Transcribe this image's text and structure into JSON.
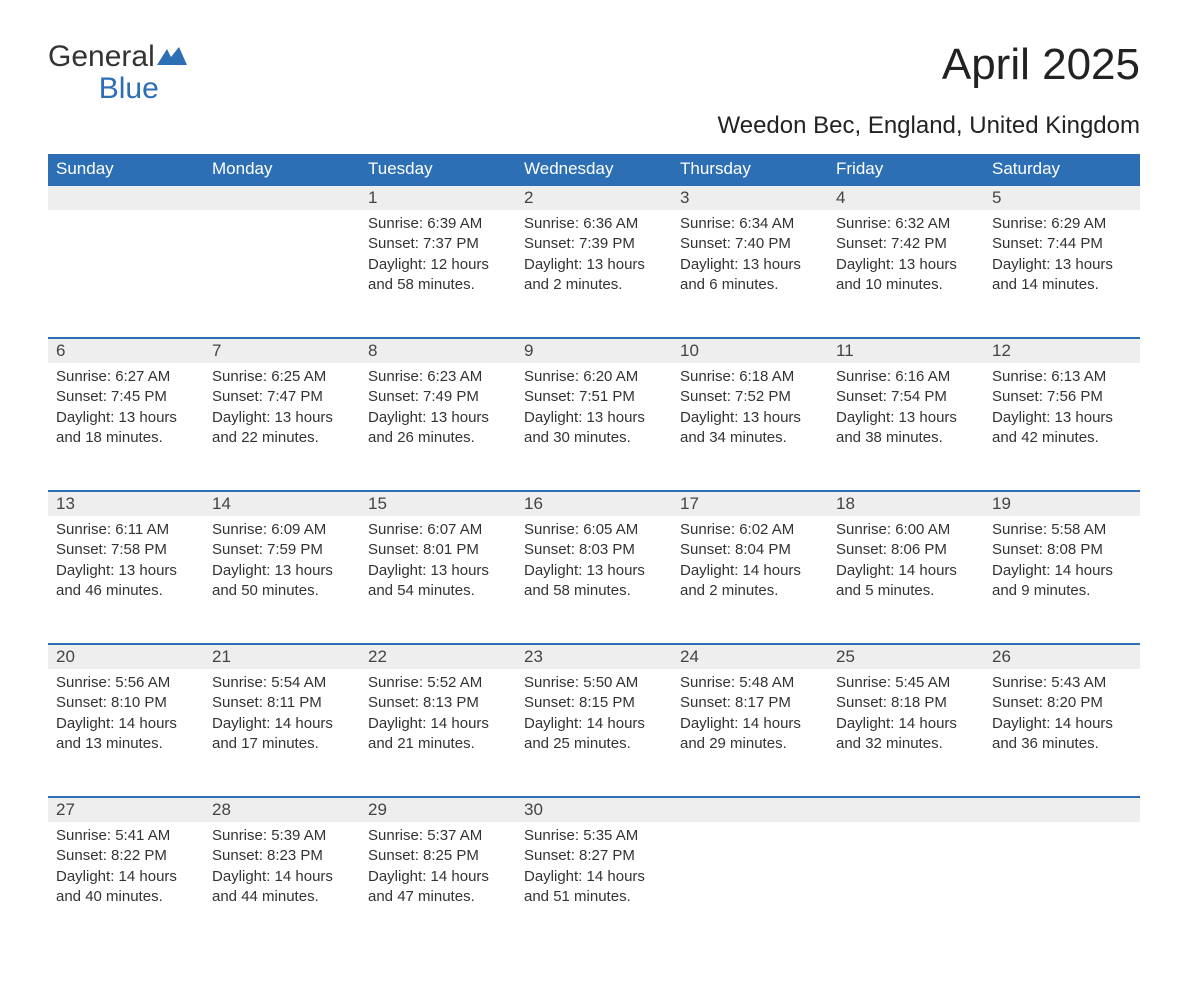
{
  "brand": {
    "word1": "General",
    "word2": "Blue"
  },
  "title": "April 2025",
  "location": "Weedon Bec, England, United Kingdom",
  "colors": {
    "header_bg": "#2c6fb5",
    "header_text": "#ffffff",
    "daynum_bg": "#eeeeee",
    "row_border": "#2c6fb5",
    "body_text": "#333333",
    "background": "#ffffff"
  },
  "column_headers": [
    "Sunday",
    "Monday",
    "Tuesday",
    "Wednesday",
    "Thursday",
    "Friday",
    "Saturday"
  ],
  "weeks": [
    [
      null,
      null,
      {
        "day": "1",
        "sunrise": "Sunrise: 6:39 AM",
        "sunset": "Sunset: 7:37 PM",
        "daylight1": "Daylight: 12 hours",
        "daylight2": "and 58 minutes."
      },
      {
        "day": "2",
        "sunrise": "Sunrise: 6:36 AM",
        "sunset": "Sunset: 7:39 PM",
        "daylight1": "Daylight: 13 hours",
        "daylight2": "and 2 minutes."
      },
      {
        "day": "3",
        "sunrise": "Sunrise: 6:34 AM",
        "sunset": "Sunset: 7:40 PM",
        "daylight1": "Daylight: 13 hours",
        "daylight2": "and 6 minutes."
      },
      {
        "day": "4",
        "sunrise": "Sunrise: 6:32 AM",
        "sunset": "Sunset: 7:42 PM",
        "daylight1": "Daylight: 13 hours",
        "daylight2": "and 10 minutes."
      },
      {
        "day": "5",
        "sunrise": "Sunrise: 6:29 AM",
        "sunset": "Sunset: 7:44 PM",
        "daylight1": "Daylight: 13 hours",
        "daylight2": "and 14 minutes."
      }
    ],
    [
      {
        "day": "6",
        "sunrise": "Sunrise: 6:27 AM",
        "sunset": "Sunset: 7:45 PM",
        "daylight1": "Daylight: 13 hours",
        "daylight2": "and 18 minutes."
      },
      {
        "day": "7",
        "sunrise": "Sunrise: 6:25 AM",
        "sunset": "Sunset: 7:47 PM",
        "daylight1": "Daylight: 13 hours",
        "daylight2": "and 22 minutes."
      },
      {
        "day": "8",
        "sunrise": "Sunrise: 6:23 AM",
        "sunset": "Sunset: 7:49 PM",
        "daylight1": "Daylight: 13 hours",
        "daylight2": "and 26 minutes."
      },
      {
        "day": "9",
        "sunrise": "Sunrise: 6:20 AM",
        "sunset": "Sunset: 7:51 PM",
        "daylight1": "Daylight: 13 hours",
        "daylight2": "and 30 minutes."
      },
      {
        "day": "10",
        "sunrise": "Sunrise: 6:18 AM",
        "sunset": "Sunset: 7:52 PM",
        "daylight1": "Daylight: 13 hours",
        "daylight2": "and 34 minutes."
      },
      {
        "day": "11",
        "sunrise": "Sunrise: 6:16 AM",
        "sunset": "Sunset: 7:54 PM",
        "daylight1": "Daylight: 13 hours",
        "daylight2": "and 38 minutes."
      },
      {
        "day": "12",
        "sunrise": "Sunrise: 6:13 AM",
        "sunset": "Sunset: 7:56 PM",
        "daylight1": "Daylight: 13 hours",
        "daylight2": "and 42 minutes."
      }
    ],
    [
      {
        "day": "13",
        "sunrise": "Sunrise: 6:11 AM",
        "sunset": "Sunset: 7:58 PM",
        "daylight1": "Daylight: 13 hours",
        "daylight2": "and 46 minutes."
      },
      {
        "day": "14",
        "sunrise": "Sunrise: 6:09 AM",
        "sunset": "Sunset: 7:59 PM",
        "daylight1": "Daylight: 13 hours",
        "daylight2": "and 50 minutes."
      },
      {
        "day": "15",
        "sunrise": "Sunrise: 6:07 AM",
        "sunset": "Sunset: 8:01 PM",
        "daylight1": "Daylight: 13 hours",
        "daylight2": "and 54 minutes."
      },
      {
        "day": "16",
        "sunrise": "Sunrise: 6:05 AM",
        "sunset": "Sunset: 8:03 PM",
        "daylight1": "Daylight: 13 hours",
        "daylight2": "and 58 minutes."
      },
      {
        "day": "17",
        "sunrise": "Sunrise: 6:02 AM",
        "sunset": "Sunset: 8:04 PM",
        "daylight1": "Daylight: 14 hours",
        "daylight2": "and 2 minutes."
      },
      {
        "day": "18",
        "sunrise": "Sunrise: 6:00 AM",
        "sunset": "Sunset: 8:06 PM",
        "daylight1": "Daylight: 14 hours",
        "daylight2": "and 5 minutes."
      },
      {
        "day": "19",
        "sunrise": "Sunrise: 5:58 AM",
        "sunset": "Sunset: 8:08 PM",
        "daylight1": "Daylight: 14 hours",
        "daylight2": "and 9 minutes."
      }
    ],
    [
      {
        "day": "20",
        "sunrise": "Sunrise: 5:56 AM",
        "sunset": "Sunset: 8:10 PM",
        "daylight1": "Daylight: 14 hours",
        "daylight2": "and 13 minutes."
      },
      {
        "day": "21",
        "sunrise": "Sunrise: 5:54 AM",
        "sunset": "Sunset: 8:11 PM",
        "daylight1": "Daylight: 14 hours",
        "daylight2": "and 17 minutes."
      },
      {
        "day": "22",
        "sunrise": "Sunrise: 5:52 AM",
        "sunset": "Sunset: 8:13 PM",
        "daylight1": "Daylight: 14 hours",
        "daylight2": "and 21 minutes."
      },
      {
        "day": "23",
        "sunrise": "Sunrise: 5:50 AM",
        "sunset": "Sunset: 8:15 PM",
        "daylight1": "Daylight: 14 hours",
        "daylight2": "and 25 minutes."
      },
      {
        "day": "24",
        "sunrise": "Sunrise: 5:48 AM",
        "sunset": "Sunset: 8:17 PM",
        "daylight1": "Daylight: 14 hours",
        "daylight2": "and 29 minutes."
      },
      {
        "day": "25",
        "sunrise": "Sunrise: 5:45 AM",
        "sunset": "Sunset: 8:18 PM",
        "daylight1": "Daylight: 14 hours",
        "daylight2": "and 32 minutes."
      },
      {
        "day": "26",
        "sunrise": "Sunrise: 5:43 AM",
        "sunset": "Sunset: 8:20 PM",
        "daylight1": "Daylight: 14 hours",
        "daylight2": "and 36 minutes."
      }
    ],
    [
      {
        "day": "27",
        "sunrise": "Sunrise: 5:41 AM",
        "sunset": "Sunset: 8:22 PM",
        "daylight1": "Daylight: 14 hours",
        "daylight2": "and 40 minutes."
      },
      {
        "day": "28",
        "sunrise": "Sunrise: 5:39 AM",
        "sunset": "Sunset: 8:23 PM",
        "daylight1": "Daylight: 14 hours",
        "daylight2": "and 44 minutes."
      },
      {
        "day": "29",
        "sunrise": "Sunrise: 5:37 AM",
        "sunset": "Sunset: 8:25 PM",
        "daylight1": "Daylight: 14 hours",
        "daylight2": "and 47 minutes."
      },
      {
        "day": "30",
        "sunrise": "Sunrise: 5:35 AM",
        "sunset": "Sunset: 8:27 PM",
        "daylight1": "Daylight: 14 hours",
        "daylight2": "and 51 minutes."
      },
      null,
      null,
      null
    ]
  ]
}
